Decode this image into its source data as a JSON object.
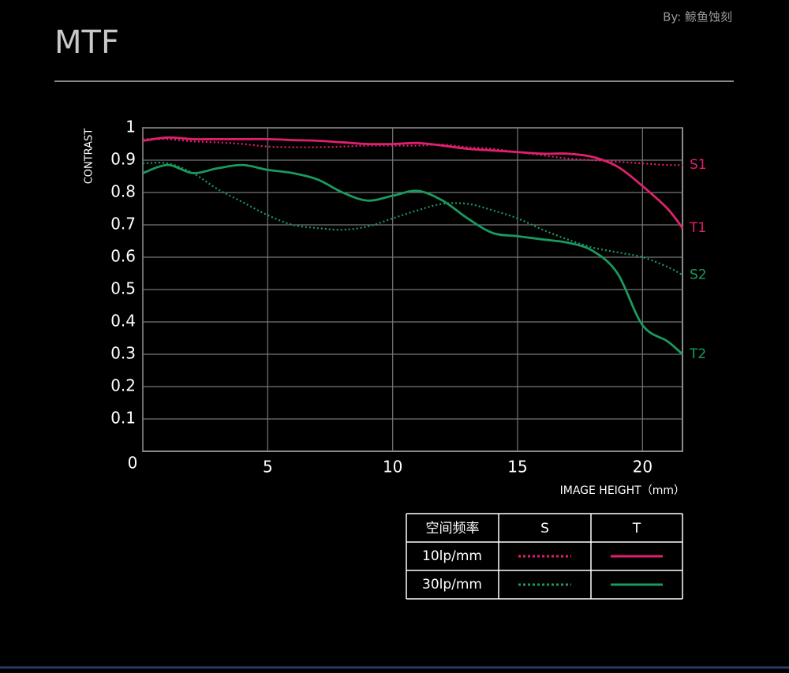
{
  "chart_data": {
    "type": "line",
    "title": "MTF",
    "credit": "By: 鲸鱼蚀刻",
    "ylabel": "CONTRAST",
    "xlabel": "IMAGE HEIGHT（mm）",
    "x": [
      0,
      1,
      2,
      3,
      4,
      5,
      6,
      7,
      8,
      9,
      10,
      11,
      12,
      13,
      14,
      15,
      16,
      17,
      18,
      19,
      20,
      21,
      21.6
    ],
    "xlim": [
      0,
      21.6
    ],
    "xticks": [
      0,
      5,
      10,
      15,
      20
    ],
    "ylim": [
      0,
      1
    ],
    "yticks": [
      0.1,
      0.2,
      0.3,
      0.4,
      0.5,
      0.6,
      0.7,
      0.8,
      0.9,
      1
    ],
    "grid": true,
    "series": [
      {
        "name": "S1",
        "color": "#e0206e",
        "dash": "dotted",
        "values": [
          0.965,
          0.965,
          0.958,
          0.955,
          0.95,
          0.942,
          0.94,
          0.94,
          0.942,
          0.945,
          0.945,
          0.945,
          0.948,
          0.94,
          0.935,
          0.925,
          0.915,
          0.905,
          0.9,
          0.895,
          0.89,
          0.885,
          0.885
        ]
      },
      {
        "name": "T1",
        "color": "#e0206e",
        "dash": "solid",
        "values": [
          0.96,
          0.97,
          0.965,
          0.965,
          0.965,
          0.965,
          0.962,
          0.96,
          0.955,
          0.95,
          0.95,
          0.953,
          0.945,
          0.935,
          0.93,
          0.925,
          0.92,
          0.92,
          0.91,
          0.88,
          0.82,
          0.75,
          0.69
        ]
      },
      {
        "name": "S2",
        "color": "#1a9a5e",
        "dash": "dotted",
        "values": [
          0.89,
          0.89,
          0.86,
          0.81,
          0.77,
          0.73,
          0.7,
          0.69,
          0.685,
          0.695,
          0.72,
          0.745,
          0.765,
          0.765,
          0.745,
          0.72,
          0.685,
          0.655,
          0.63,
          0.615,
          0.6,
          0.57,
          0.545
        ]
      },
      {
        "name": "T2",
        "color": "#1a9a5e",
        "dash": "solid",
        "values": [
          0.86,
          0.885,
          0.86,
          0.875,
          0.885,
          0.87,
          0.86,
          0.84,
          0.8,
          0.775,
          0.79,
          0.805,
          0.775,
          0.72,
          0.675,
          0.665,
          0.655,
          0.645,
          0.62,
          0.55,
          0.39,
          0.34,
          0.3
        ]
      }
    ],
    "legend_table": {
      "header": [
        "空间频率",
        "S",
        "T"
      ],
      "rows": [
        "10lp/mm",
        "30lp/mm"
      ]
    }
  }
}
